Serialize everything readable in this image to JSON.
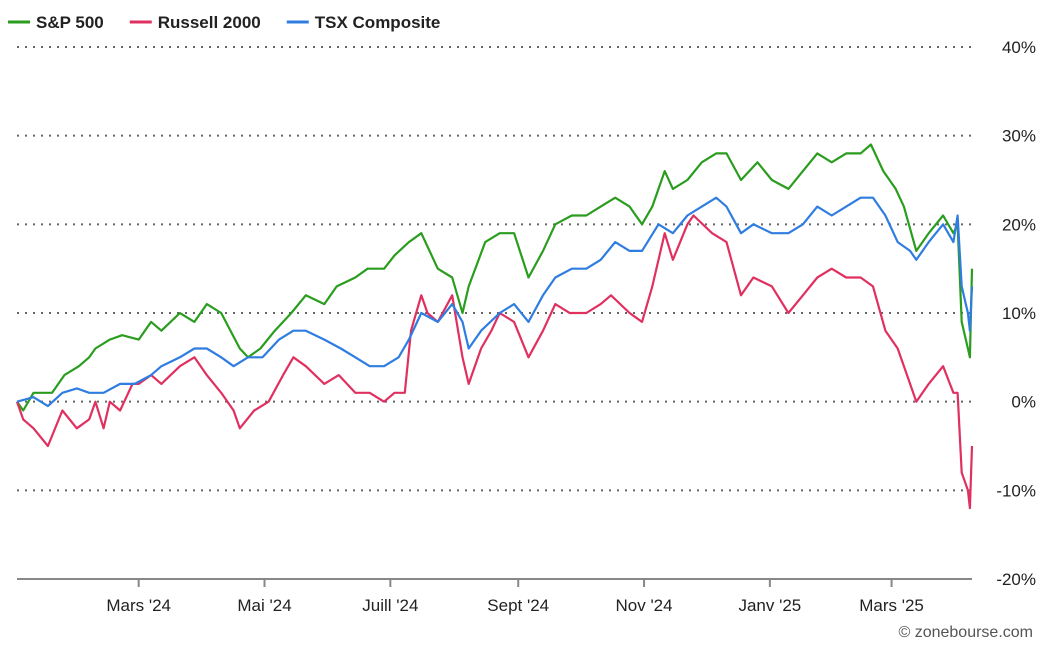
{
  "chart_data": {
    "type": "line",
    "title": "",
    "xlabel": "",
    "ylabel": "",
    "y_axis_side": "right",
    "ylim": [
      -20,
      40
    ],
    "y_ticks": [
      40,
      30,
      20,
      10,
      0,
      -10,
      -20
    ],
    "y_tick_labels": [
      "40%",
      "30%",
      "20%",
      "10%",
      "0%",
      "-10%",
      "-20%"
    ],
    "x_ticks": [
      {
        "label": "Mars '24",
        "date": "2024-03-01"
      },
      {
        "label": "Mai '24",
        "date": "2024-05-01"
      },
      {
        "label": "Juill '24",
        "date": "2024-07-01"
      },
      {
        "label": "Sept '24",
        "date": "2024-09-01"
      },
      {
        "label": "Nov '24",
        "date": "2024-11-01"
      },
      {
        "label": "Janv '25",
        "date": "2025-01-01"
      },
      {
        "label": "Mars '25",
        "date": "2025-03-01"
      }
    ],
    "xlim": [
      "2024-01-02",
      "2025-04-09"
    ],
    "grid": "horizontal-dotted",
    "legend_position": "top-left",
    "series": [
      {
        "name": "S&P 500",
        "color": "#2a9d1e",
        "points": [
          [
            "2024-01-02",
            0
          ],
          [
            "2024-01-05",
            -1
          ],
          [
            "2024-01-10",
            1
          ],
          [
            "2024-01-19",
            1
          ],
          [
            "2024-01-25",
            3
          ],
          [
            "2024-02-01",
            4
          ],
          [
            "2024-02-06",
            5
          ],
          [
            "2024-02-09",
            6
          ],
          [
            "2024-02-16",
            7
          ],
          [
            "2024-02-22",
            7.5
          ],
          [
            "2024-03-01",
            7
          ],
          [
            "2024-03-07",
            9
          ],
          [
            "2024-03-12",
            8
          ],
          [
            "2024-03-21",
            10
          ],
          [
            "2024-03-28",
            9
          ],
          [
            "2024-04-03",
            11
          ],
          [
            "2024-04-10",
            10
          ],
          [
            "2024-04-19",
            6
          ],
          [
            "2024-04-23",
            5
          ],
          [
            "2024-04-29",
            6
          ],
          [
            "2024-05-06",
            8
          ],
          [
            "2024-05-14",
            10
          ],
          [
            "2024-05-21",
            12
          ],
          [
            "2024-05-30",
            11
          ],
          [
            "2024-06-05",
            13
          ],
          [
            "2024-06-14",
            14
          ],
          [
            "2024-06-20",
            15
          ],
          [
            "2024-06-28",
            15
          ],
          [
            "2024-07-03",
            16.5
          ],
          [
            "2024-07-10",
            18
          ],
          [
            "2024-07-16",
            19
          ],
          [
            "2024-07-24",
            15
          ],
          [
            "2024-07-31",
            14
          ],
          [
            "2024-08-05",
            10
          ],
          [
            "2024-08-08",
            13
          ],
          [
            "2024-08-16",
            18
          ],
          [
            "2024-08-23",
            19
          ],
          [
            "2024-08-30",
            19
          ],
          [
            "2024-09-06",
            14
          ],
          [
            "2024-09-13",
            17
          ],
          [
            "2024-09-19",
            20
          ],
          [
            "2024-09-27",
            21
          ],
          [
            "2024-10-04",
            21
          ],
          [
            "2024-10-11",
            22
          ],
          [
            "2024-10-18",
            23
          ],
          [
            "2024-10-25",
            22
          ],
          [
            "2024-10-31",
            20
          ],
          [
            "2024-11-05",
            22
          ],
          [
            "2024-11-11",
            26
          ],
          [
            "2024-11-15",
            24
          ],
          [
            "2024-11-22",
            25
          ],
          [
            "2024-11-29",
            27
          ],
          [
            "2024-12-06",
            28
          ],
          [
            "2024-12-11",
            28
          ],
          [
            "2024-12-18",
            25
          ],
          [
            "2024-12-26",
            27
          ],
          [
            "2025-01-02",
            25
          ],
          [
            "2025-01-10",
            24
          ],
          [
            "2025-01-17",
            26
          ],
          [
            "2025-01-24",
            28
          ],
          [
            "2025-01-31",
            27
          ],
          [
            "2025-02-07",
            28
          ],
          [
            "2025-02-14",
            28
          ],
          [
            "2025-02-19",
            29
          ],
          [
            "2025-02-25",
            26
          ],
          [
            "2025-03-03",
            24
          ],
          [
            "2025-03-07",
            22
          ],
          [
            "2025-03-13",
            17
          ],
          [
            "2025-03-19",
            19
          ],
          [
            "2025-03-26",
            21
          ],
          [
            "2025-03-31",
            19
          ],
          [
            "2025-04-02",
            20
          ],
          [
            "2025-04-04",
            9
          ],
          [
            "2025-04-07",
            6
          ],
          [
            "2025-04-08",
            5
          ],
          [
            "2025-04-09",
            15
          ]
        ]
      },
      {
        "name": "Russell 2000",
        "color": "#e03060",
        "points": [
          [
            "2024-01-02",
            0
          ],
          [
            "2024-01-05",
            -2
          ],
          [
            "2024-01-10",
            -3
          ],
          [
            "2024-01-17",
            -5
          ],
          [
            "2024-01-24",
            -1
          ],
          [
            "2024-01-31",
            -3
          ],
          [
            "2024-02-06",
            -2
          ],
          [
            "2024-02-09",
            0
          ],
          [
            "2024-02-13",
            -3
          ],
          [
            "2024-02-16",
            0
          ],
          [
            "2024-02-21",
            -1
          ],
          [
            "2024-02-27",
            2
          ],
          [
            "2024-03-01",
            2
          ],
          [
            "2024-03-07",
            3
          ],
          [
            "2024-03-12",
            2
          ],
          [
            "2024-03-21",
            4
          ],
          [
            "2024-03-28",
            5
          ],
          [
            "2024-04-03",
            3
          ],
          [
            "2024-04-10",
            1
          ],
          [
            "2024-04-16",
            -1
          ],
          [
            "2024-04-19",
            -3
          ],
          [
            "2024-04-26",
            -1
          ],
          [
            "2024-05-03",
            0
          ],
          [
            "2024-05-10",
            3
          ],
          [
            "2024-05-15",
            5
          ],
          [
            "2024-05-21",
            4
          ],
          [
            "2024-05-30",
            2
          ],
          [
            "2024-06-06",
            3
          ],
          [
            "2024-06-14",
            1
          ],
          [
            "2024-06-21",
            1
          ],
          [
            "2024-06-28",
            0
          ],
          [
            "2024-07-03",
            1
          ],
          [
            "2024-07-08",
            1
          ],
          [
            "2024-07-11",
            8
          ],
          [
            "2024-07-16",
            12
          ],
          [
            "2024-07-19",
            10
          ],
          [
            "2024-07-24",
            9
          ],
          [
            "2024-07-31",
            12
          ],
          [
            "2024-08-05",
            5
          ],
          [
            "2024-08-08",
            2
          ],
          [
            "2024-08-14",
            6
          ],
          [
            "2024-08-19",
            8
          ],
          [
            "2024-08-23",
            10
          ],
          [
            "2024-08-30",
            9
          ],
          [
            "2024-09-06",
            5
          ],
          [
            "2024-09-13",
            8
          ],
          [
            "2024-09-19",
            11
          ],
          [
            "2024-09-26",
            10
          ],
          [
            "2024-10-04",
            10
          ],
          [
            "2024-10-11",
            11
          ],
          [
            "2024-10-16",
            12
          ],
          [
            "2024-10-25",
            10
          ],
          [
            "2024-10-31",
            9
          ],
          [
            "2024-11-05",
            13
          ],
          [
            "2024-11-11",
            19
          ],
          [
            "2024-11-15",
            16
          ],
          [
            "2024-11-22",
            20
          ],
          [
            "2024-11-25",
            21
          ],
          [
            "2024-12-04",
            19
          ],
          [
            "2024-12-11",
            18
          ],
          [
            "2024-12-18",
            12
          ],
          [
            "2024-12-24",
            14
          ],
          [
            "2025-01-02",
            13
          ],
          [
            "2025-01-10",
            10
          ],
          [
            "2025-01-17",
            12
          ],
          [
            "2025-01-24",
            14
          ],
          [
            "2025-01-31",
            15
          ],
          [
            "2025-02-07",
            14
          ],
          [
            "2025-02-14",
            14
          ],
          [
            "2025-02-20",
            13
          ],
          [
            "2025-02-26",
            8
          ],
          [
            "2025-03-04",
            6
          ],
          [
            "2025-03-10",
            2
          ],
          [
            "2025-03-13",
            0
          ],
          [
            "2025-03-19",
            2
          ],
          [
            "2025-03-26",
            4
          ],
          [
            "2025-03-31",
            1
          ],
          [
            "2025-04-02",
            1
          ],
          [
            "2025-04-04",
            -8
          ],
          [
            "2025-04-07",
            -10
          ],
          [
            "2025-04-08",
            -12
          ],
          [
            "2025-04-09",
            -5
          ]
        ]
      },
      {
        "name": "TSX Composite",
        "color": "#2f7de0",
        "points": [
          [
            "2024-01-02",
            0
          ],
          [
            "2024-01-10",
            0.5
          ],
          [
            "2024-01-17",
            -0.5
          ],
          [
            "2024-01-24",
            1
          ],
          [
            "2024-01-31",
            1.5
          ],
          [
            "2024-02-06",
            1
          ],
          [
            "2024-02-13",
            1
          ],
          [
            "2024-02-21",
            2
          ],
          [
            "2024-02-28",
            2
          ],
          [
            "2024-03-07",
            3
          ],
          [
            "2024-03-12",
            4
          ],
          [
            "2024-03-21",
            5
          ],
          [
            "2024-03-28",
            6
          ],
          [
            "2024-04-03",
            6
          ],
          [
            "2024-04-10",
            5
          ],
          [
            "2024-04-16",
            4
          ],
          [
            "2024-04-23",
            5
          ],
          [
            "2024-04-30",
            5
          ],
          [
            "2024-05-08",
            7
          ],
          [
            "2024-05-15",
            8
          ],
          [
            "2024-05-21",
            8
          ],
          [
            "2024-05-30",
            7
          ],
          [
            "2024-06-07",
            6
          ],
          [
            "2024-06-14",
            5
          ],
          [
            "2024-06-21",
            4
          ],
          [
            "2024-06-28",
            4
          ],
          [
            "2024-07-05",
            5
          ],
          [
            "2024-07-10",
            7
          ],
          [
            "2024-07-16",
            10
          ],
          [
            "2024-07-24",
            9
          ],
          [
            "2024-07-31",
            11
          ],
          [
            "2024-08-05",
            9
          ],
          [
            "2024-08-08",
            6
          ],
          [
            "2024-08-14",
            8
          ],
          [
            "2024-08-23",
            10
          ],
          [
            "2024-08-30",
            11
          ],
          [
            "2024-09-06",
            9
          ],
          [
            "2024-09-13",
            12
          ],
          [
            "2024-09-19",
            14
          ],
          [
            "2024-09-27",
            15
          ],
          [
            "2024-10-04",
            15
          ],
          [
            "2024-10-11",
            16
          ],
          [
            "2024-10-18",
            18
          ],
          [
            "2024-10-25",
            17
          ],
          [
            "2024-10-31",
            17
          ],
          [
            "2024-11-08",
            20
          ],
          [
            "2024-11-15",
            19
          ],
          [
            "2024-11-22",
            21
          ],
          [
            "2024-11-29",
            22
          ],
          [
            "2024-12-06",
            23
          ],
          [
            "2024-12-11",
            22
          ],
          [
            "2024-12-18",
            19
          ],
          [
            "2024-12-24",
            20
          ],
          [
            "2025-01-02",
            19
          ],
          [
            "2025-01-10",
            19
          ],
          [
            "2025-01-17",
            20
          ],
          [
            "2025-01-24",
            22
          ],
          [
            "2025-01-31",
            21
          ],
          [
            "2025-02-07",
            22
          ],
          [
            "2025-02-14",
            23
          ],
          [
            "2025-02-20",
            23
          ],
          [
            "2025-02-26",
            21
          ],
          [
            "2025-03-04",
            18
          ],
          [
            "2025-03-10",
            17
          ],
          [
            "2025-03-13",
            16
          ],
          [
            "2025-03-19",
            18
          ],
          [
            "2025-03-26",
            20
          ],
          [
            "2025-03-31",
            18
          ],
          [
            "2025-04-02",
            21
          ],
          [
            "2025-04-04",
            13
          ],
          [
            "2025-04-07",
            10
          ],
          [
            "2025-04-08",
            8
          ],
          [
            "2025-04-09",
            13
          ]
        ]
      }
    ]
  },
  "credit": "© zonebourse.com"
}
